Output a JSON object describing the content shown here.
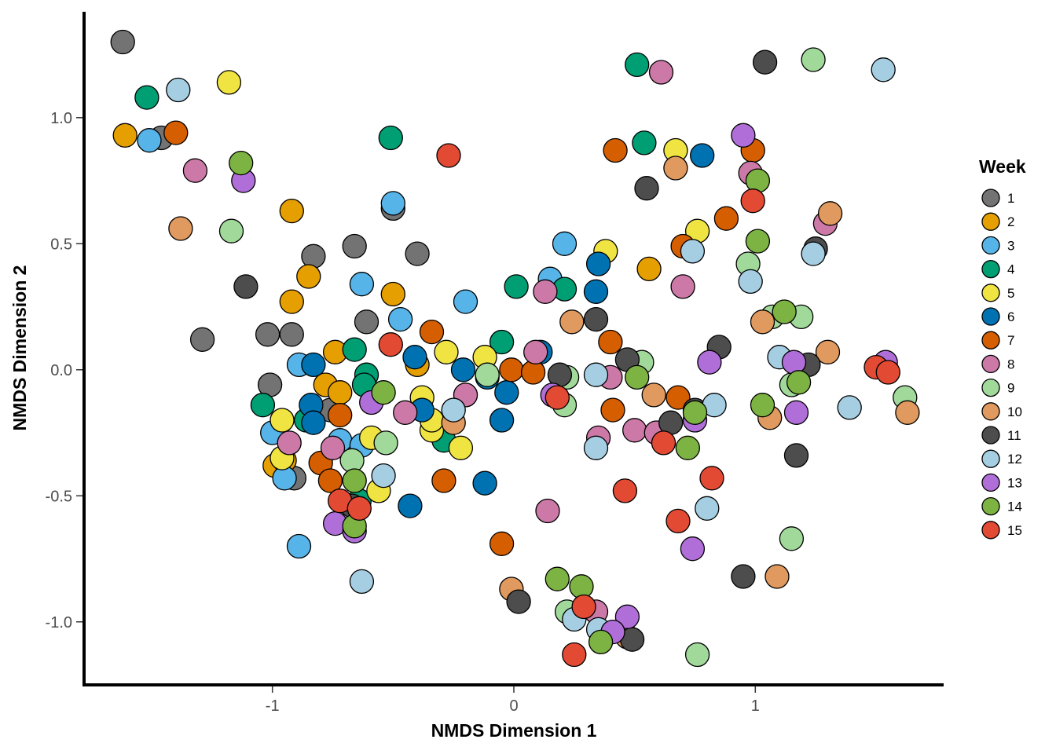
{
  "chart_data": {
    "type": "scatter",
    "title": "",
    "xlabel": "NMDS Dimension 1",
    "ylabel": "NMDS Dimension 2",
    "xlim": [
      -1.78,
      1.78
    ],
    "ylim": [
      -1.25,
      1.42
    ],
    "xticks": [
      -1,
      0,
      1
    ],
    "xtick_labels": [
      "-1",
      "0",
      "1"
    ],
    "yticks": [
      -1.0,
      -0.5,
      0.0,
      0.5,
      1.0
    ],
    "ytick_labels": [
      "-1.0",
      "-0.5",
      "0.0",
      "0.5",
      "1.0"
    ],
    "grid": false,
    "legend": {
      "title": "Week",
      "position": "right"
    },
    "series": [
      {
        "name": "1",
        "color": "#737373",
        "points": [
          [
            -1.62,
            1.3
          ],
          [
            -1.46,
            0.92
          ],
          [
            -0.83,
            0.45
          ],
          [
            -0.66,
            0.49
          ],
          [
            -0.4,
            0.46
          ],
          [
            -0.5,
            0.64
          ],
          [
            -1.29,
            0.12
          ],
          [
            -1.02,
            0.14
          ],
          [
            -0.92,
            0.14
          ],
          [
            -0.61,
            0.19
          ],
          [
            -1.01,
            -0.06
          ],
          [
            -0.91,
            -0.43
          ],
          [
            -0.76,
            -0.16
          ]
        ]
      },
      {
        "name": "2",
        "color": "#E69F00",
        "points": [
          [
            -1.61,
            0.93
          ],
          [
            -0.92,
            0.63
          ],
          [
            -0.85,
            0.37
          ],
          [
            -0.92,
            0.27
          ],
          [
            -0.5,
            0.3
          ],
          [
            -0.74,
            0.07
          ],
          [
            -0.4,
            0.02
          ],
          [
            -0.78,
            -0.06
          ],
          [
            -0.72,
            -0.09
          ],
          [
            -0.99,
            -0.38
          ],
          [
            0.56,
            0.4
          ],
          [
            -0.95,
            -0.36
          ]
        ]
      },
      {
        "name": "3",
        "color": "#56B4E9",
        "points": [
          [
            -1.51,
            0.91
          ],
          [
            -0.5,
            0.66
          ],
          [
            -0.63,
            0.34
          ],
          [
            -0.47,
            0.2
          ],
          [
            -0.2,
            0.27
          ],
          [
            0.15,
            0.36
          ],
          [
            0.21,
            0.5
          ],
          [
            -0.89,
            0.02
          ],
          [
            -0.72,
            -0.28
          ],
          [
            -0.95,
            -0.43
          ],
          [
            -0.89,
            -0.7
          ],
          [
            -1.0,
            -0.25
          ],
          [
            -0.63,
            -0.3
          ]
        ]
      },
      {
        "name": "4",
        "color": "#009E73",
        "points": [
          [
            -1.52,
            1.08
          ],
          [
            -0.51,
            0.92
          ],
          [
            0.51,
            1.21
          ],
          [
            0.54,
            0.9
          ],
          [
            0.01,
            0.33
          ],
          [
            0.21,
            0.32
          ],
          [
            -0.66,
            0.08
          ],
          [
            -0.61,
            -0.02
          ],
          [
            -1.04,
            -0.14
          ],
          [
            -0.62,
            -0.06
          ],
          [
            -0.05,
            0.11
          ],
          [
            -0.64,
            -0.52
          ],
          [
            -0.29,
            -0.28
          ],
          [
            -0.86,
            -0.2
          ]
        ]
      },
      {
        "name": "5",
        "color": "#F0E442",
        "points": [
          [
            -1.18,
            1.14
          ],
          [
            0.67,
            0.87
          ],
          [
            0.38,
            0.47
          ],
          [
            0.76,
            0.55
          ],
          [
            -0.28,
            0.07
          ],
          [
            -0.12,
            0.05
          ],
          [
            -0.38,
            -0.11
          ],
          [
            -0.34,
            -0.24
          ],
          [
            -0.96,
            -0.2
          ],
          [
            -0.96,
            -0.35
          ],
          [
            -0.59,
            -0.27
          ],
          [
            -0.56,
            -0.48
          ],
          [
            -0.22,
            -0.31
          ],
          [
            -0.34,
            -0.2
          ]
        ]
      },
      {
        "name": "6",
        "color": "#0072B2",
        "points": [
          [
            0.78,
            0.85
          ],
          [
            0.35,
            0.42
          ],
          [
            0.34,
            0.31
          ],
          [
            -0.41,
            0.05
          ],
          [
            -0.83,
            0.02
          ],
          [
            -0.21,
            0.0
          ],
          [
            -0.2,
            -0.1
          ],
          [
            -0.11,
            -0.03
          ],
          [
            0.11,
            0.07
          ],
          [
            -0.03,
            -0.09
          ],
          [
            -0.84,
            -0.14
          ],
          [
            -0.83,
            -0.21
          ],
          [
            -0.38,
            -0.16
          ],
          [
            -0.05,
            -0.2
          ],
          [
            -0.12,
            -0.45
          ],
          [
            -0.43,
            -0.54
          ]
        ]
      },
      {
        "name": "7",
        "color": "#D55E00",
        "points": [
          [
            -1.4,
            0.94
          ],
          [
            0.42,
            0.87
          ],
          [
            0.99,
            0.87
          ],
          [
            0.88,
            0.6
          ],
          [
            0.7,
            0.49
          ],
          [
            -0.34,
            0.15
          ],
          [
            0.4,
            0.11
          ],
          [
            -0.01,
            0.0
          ],
          [
            0.08,
            -0.01
          ],
          [
            0.41,
            -0.16
          ],
          [
            0.68,
            -0.11
          ],
          [
            -0.72,
            -0.18
          ],
          [
            -0.8,
            -0.37
          ],
          [
            -0.76,
            -0.44
          ],
          [
            -0.29,
            -0.44
          ],
          [
            -0.05,
            -0.69
          ]
        ]
      },
      {
        "name": "8",
        "color": "#CC79A7",
        "points": [
          [
            0.61,
            1.18
          ],
          [
            -1.32,
            0.79
          ],
          [
            0.98,
            0.78
          ],
          [
            1.29,
            0.58
          ],
          [
            0.13,
            0.31
          ],
          [
            0.7,
            0.33
          ],
          [
            0.09,
            0.07
          ],
          [
            -0.45,
            -0.17
          ],
          [
            -0.2,
            -0.1
          ],
          [
            0.4,
            -0.03
          ],
          [
            0.35,
            -0.27
          ],
          [
            0.5,
            -0.24
          ],
          [
            0.59,
            -0.25
          ],
          [
            -0.93,
            -0.29
          ],
          [
            -0.75,
            -0.31
          ],
          [
            0.14,
            -0.56
          ],
          [
            0.34,
            -0.96
          ]
        ]
      },
      {
        "name": "9",
        "color": "#A1D99B",
        "points": [
          [
            1.24,
            1.23
          ],
          [
            -1.17,
            0.55
          ],
          [
            0.97,
            0.42
          ],
          [
            1.07,
            0.21
          ],
          [
            1.19,
            0.21
          ],
          [
            0.53,
            0.03
          ],
          [
            0.22,
            -0.03
          ],
          [
            -0.11,
            -0.02
          ],
          [
            1.15,
            -0.06
          ],
          [
            -0.53,
            -0.29
          ],
          [
            -0.67,
            -0.36
          ],
          [
            0.21,
            -0.14
          ],
          [
            1.62,
            -0.11
          ],
          [
            0.22,
            -0.96
          ],
          [
            1.15,
            -0.67
          ],
          [
            0.76,
            -1.13
          ]
        ]
      },
      {
        "name": "10",
        "color": "#E0995E",
        "points": [
          [
            -1.38,
            0.56
          ],
          [
            0.67,
            0.8
          ],
          [
            1.31,
            0.62
          ],
          [
            0.24,
            0.19
          ],
          [
            1.03,
            0.19
          ],
          [
            1.3,
            0.07
          ],
          [
            0.58,
            -0.1
          ],
          [
            1.06,
            -0.19
          ],
          [
            1.63,
            -0.17
          ],
          [
            -0.25,
            -0.21
          ],
          [
            -0.01,
            -0.87
          ],
          [
            1.09,
            -0.82
          ],
          [
            0.47,
            -1.06
          ]
        ]
      },
      {
        "name": "11",
        "color": "#4D4D4D",
        "points": [
          [
            1.04,
            1.22
          ],
          [
            -1.11,
            0.33
          ],
          [
            0.55,
            0.72
          ],
          [
            1.25,
            0.48
          ],
          [
            0.34,
            0.2
          ],
          [
            0.85,
            0.09
          ],
          [
            0.47,
            0.04
          ],
          [
            1.22,
            0.02
          ],
          [
            0.19,
            -0.02
          ],
          [
            0.65,
            -0.21
          ],
          [
            1.17,
            -0.34
          ],
          [
            0.95,
            -0.82
          ],
          [
            0.02,
            -0.92
          ],
          [
            0.49,
            -1.07
          ],
          [
            -0.67,
            -0.54
          ],
          [
            0.75,
            -0.16
          ]
        ]
      },
      {
        "name": "12",
        "color": "#A6CEE3",
        "points": [
          [
            1.53,
            1.19
          ],
          [
            -1.39,
            1.11
          ],
          [
            0.74,
            0.47
          ],
          [
            1.24,
            0.46
          ],
          [
            0.98,
            0.35
          ],
          [
            1.1,
            0.05
          ],
          [
            0.34,
            -0.02
          ],
          [
            0.83,
            -0.14
          ],
          [
            1.39,
            -0.15
          ],
          [
            0.34,
            -0.31
          ],
          [
            -0.25,
            -0.16
          ],
          [
            -0.54,
            -0.42
          ],
          [
            0.8,
            -0.55
          ],
          [
            -0.63,
            -0.84
          ],
          [
            0.25,
            -0.99
          ],
          [
            0.35,
            -1.03
          ]
        ]
      },
      {
        "name": "13",
        "color": "#B06FD8",
        "points": [
          [
            0.95,
            0.93
          ],
          [
            -1.12,
            0.75
          ],
          [
            0.81,
            0.03
          ],
          [
            1.16,
            0.03
          ],
          [
            1.54,
            0.03
          ],
          [
            -0.59,
            -0.13
          ],
          [
            0.16,
            -0.1
          ],
          [
            1.17,
            -0.17
          ],
          [
            0.75,
            -0.2
          ],
          [
            -0.74,
            -0.61
          ],
          [
            -0.66,
            -0.64
          ],
          [
            0.74,
            -0.71
          ],
          [
            0.47,
            -0.98
          ],
          [
            0.41,
            -1.04
          ]
        ]
      },
      {
        "name": "14",
        "color": "#7CB342",
        "points": [
          [
            -1.13,
            0.82
          ],
          [
            1.01,
            0.75
          ],
          [
            1.01,
            0.51
          ],
          [
            1.12,
            0.23
          ],
          [
            0.51,
            -0.03
          ],
          [
            -0.54,
            -0.09
          ],
          [
            0.75,
            -0.17
          ],
          [
            1.18,
            -0.05
          ],
          [
            1.03,
            -0.14
          ],
          [
            0.72,
            -0.31
          ],
          [
            -0.66,
            -0.44
          ],
          [
            -0.66,
            -0.62
          ],
          [
            0.18,
            -0.83
          ],
          [
            0.28,
            -0.86
          ],
          [
            0.36,
            -1.08
          ]
        ]
      },
      {
        "name": "15",
        "color": "#E34A33",
        "points": [
          [
            -0.27,
            0.85
          ],
          [
            0.99,
            0.67
          ],
          [
            -0.51,
            0.1
          ],
          [
            1.5,
            0.01
          ],
          [
            1.55,
            -0.01
          ],
          [
            0.18,
            -0.11
          ],
          [
            0.62,
            -0.29
          ],
          [
            0.82,
            -0.43
          ],
          [
            0.46,
            -0.48
          ],
          [
            -0.72,
            -0.52
          ],
          [
            -0.64,
            -0.55
          ],
          [
            0.68,
            -0.6
          ],
          [
            0.29,
            -0.94
          ],
          [
            0.25,
            -1.13
          ]
        ]
      }
    ]
  }
}
